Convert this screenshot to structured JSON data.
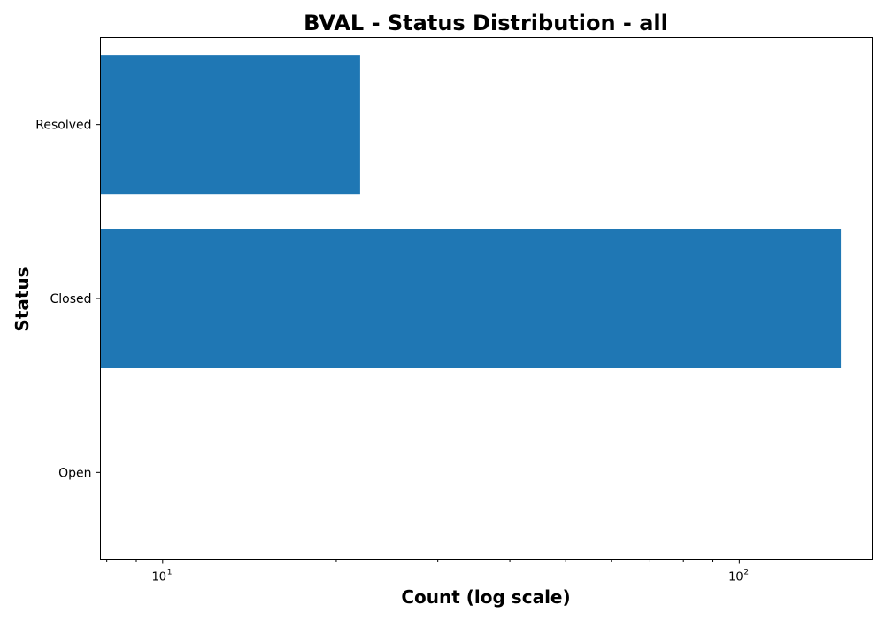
{
  "chart_data": {
    "type": "bar",
    "orientation": "horizontal",
    "title": "BVAL - Status Distribution - all",
    "xlabel": "Count (log scale)",
    "ylabel": "Status",
    "xscale": "log",
    "xlim": [
      7.8,
      170
    ],
    "categories": [
      "Resolved",
      "Closed",
      "Open"
    ],
    "values": [
      22,
      150,
      7
    ],
    "bar_color": "#1f77b4",
    "x_major_ticks": [
      {
        "value": 10,
        "base": "10",
        "exp": "1"
      },
      {
        "value": 100,
        "base": "10",
        "exp": "2"
      }
    ],
    "x_minor_ticks": [
      8,
      9,
      20,
      30,
      40,
      50,
      60,
      70,
      80,
      90
    ],
    "grid": false,
    "legend": "none"
  }
}
